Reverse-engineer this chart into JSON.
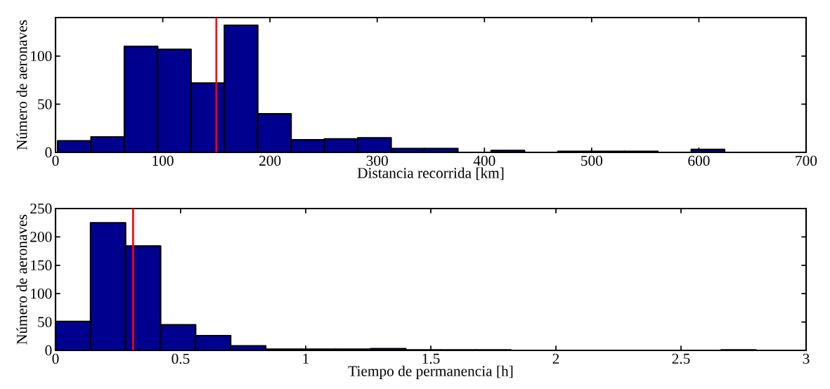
{
  "chart_data": [
    {
      "type": "histogram",
      "xlabel": "Distancia recorrida [km]",
      "ylabel": "Número de aeronaves",
      "color": "#00008f",
      "bins": [
        2,
        33.1,
        64.2,
        95.3,
        126.4,
        157.5,
        188.6,
        219.7,
        250.8,
        281.9,
        313,
        344.1,
        375.2,
        406.3,
        437.4,
        468.5,
        499.6,
        530.7,
        561.8,
        592.9,
        624
      ],
      "values": [
        12,
        16,
        110,
        107,
        72,
        132,
        40,
        13,
        14,
        15,
        4,
        4,
        0,
        2,
        0,
        1,
        1,
        1,
        0,
        3
      ],
      "xlim": [
        0,
        700
      ],
      "ylim": [
        0,
        140
      ],
      "xticks": [
        0,
        100,
        200,
        300,
        400,
        500,
        600,
        700
      ],
      "yticks": [
        0,
        50,
        100
      ],
      "ref_lines": [
        {
          "axis": "x",
          "value": 150,
          "color": "#ff0000"
        }
      ]
    },
    {
      "type": "histogram",
      "xlabel": "Tiempo de permanencia [h]",
      "ylabel": "Número de aeronaves",
      "color": "#00008f",
      "bins": [
        0,
        0.14,
        0.28,
        0.42,
        0.56,
        0.7,
        0.84,
        0.98,
        1.12,
        1.26,
        1.4,
        1.54,
        1.68,
        1.82,
        1.96,
        2.1,
        2.24,
        2.38,
        2.52,
        2.66,
        2.8
      ],
      "values": [
        51,
        225,
        184,
        45,
        26,
        8,
        2,
        2,
        2,
        3,
        1,
        1,
        1,
        0,
        0,
        0,
        0,
        0,
        0,
        1
      ],
      "xlim": [
        0,
        3
      ],
      "ylim": [
        0,
        250
      ],
      "xticks": [
        0,
        0.5,
        1,
        1.5,
        2,
        2.5,
        3
      ],
      "yticks": [
        0,
        50,
        100,
        150,
        200,
        250
      ],
      "ref_lines": [
        {
          "axis": "x",
          "value": 0.31,
          "color": "#ff0000"
        }
      ]
    }
  ]
}
